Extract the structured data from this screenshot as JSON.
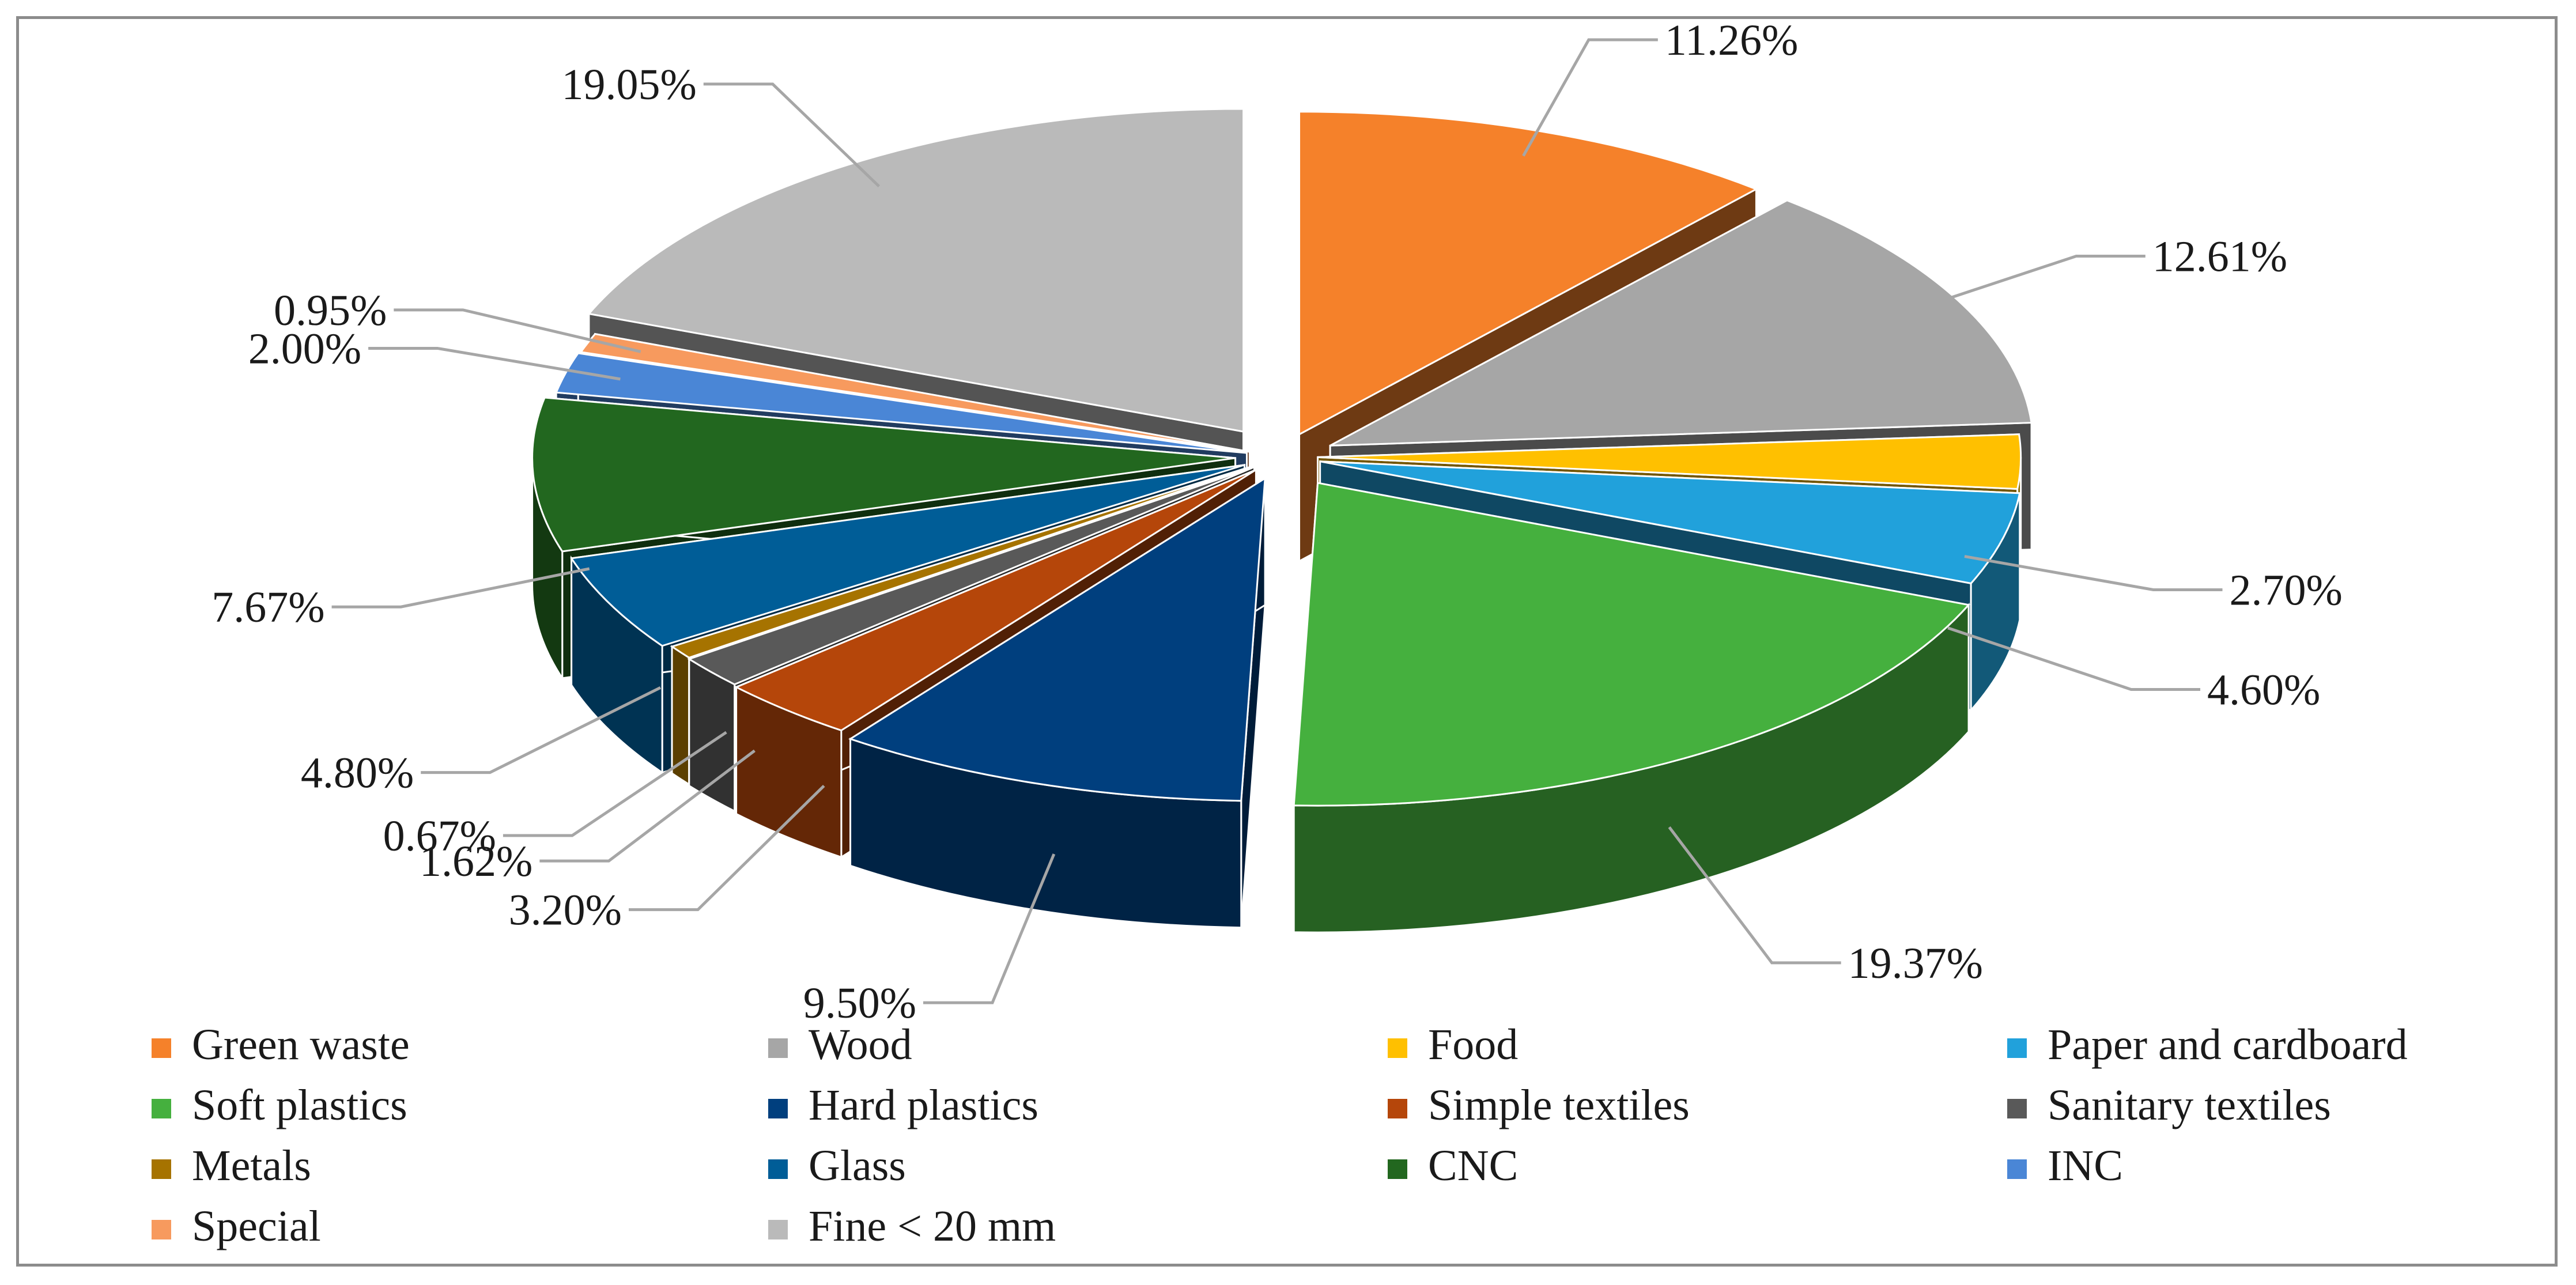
{
  "chart_data": {
    "type": "pie",
    "style": "3d-exploded",
    "title": "",
    "legend_position": "bottom",
    "slices": [
      {
        "label": "Green waste",
        "value": 11.26,
        "display": "11.26%",
        "color": "#F5812A"
      },
      {
        "label": "Wood",
        "value": 12.61,
        "display": "12.61%",
        "color": "#A6A6A6"
      },
      {
        "label": "Food",
        "value": 2.7,
        "display": "2.70%",
        "color": "#FFC000"
      },
      {
        "label": "Paper and cardboard",
        "value": 4.6,
        "display": "4.60%",
        "color": "#21A1DB"
      },
      {
        "label": "Soft plastics",
        "value": 19.37,
        "display": "19.37%",
        "color": "#45B03E"
      },
      {
        "label": "Hard plastics",
        "value": 9.5,
        "display": "9.50%",
        "color": "#003F7E"
      },
      {
        "label": "Simple textiles",
        "value": 3.2,
        "display": "3.20%",
        "color": "#B5460A"
      },
      {
        "label": "Sanitary textiles",
        "value": 1.62,
        "display": "1.62%",
        "color": "#595959"
      },
      {
        "label": "Metals",
        "value": 0.67,
        "display": "0.67%",
        "color": "#A67300"
      },
      {
        "label": "Glass",
        "value": 4.8,
        "display": "4.80%",
        "color": "#005D97"
      },
      {
        "label": "CNC",
        "value": 7.67,
        "display": "7.67%",
        "color": "#22671F"
      },
      {
        "label": "INC",
        "value": 2.0,
        "display": "2.00%",
        "color": "#4A86D6"
      },
      {
        "label": "Special",
        "value": 0.95,
        "display": "0.95%",
        "color": "#F79A5E"
      },
      {
        "label": "Fine < 20 mm",
        "value": 19.05,
        "display": "19.05%",
        "color": "#BABABA"
      }
    ]
  }
}
